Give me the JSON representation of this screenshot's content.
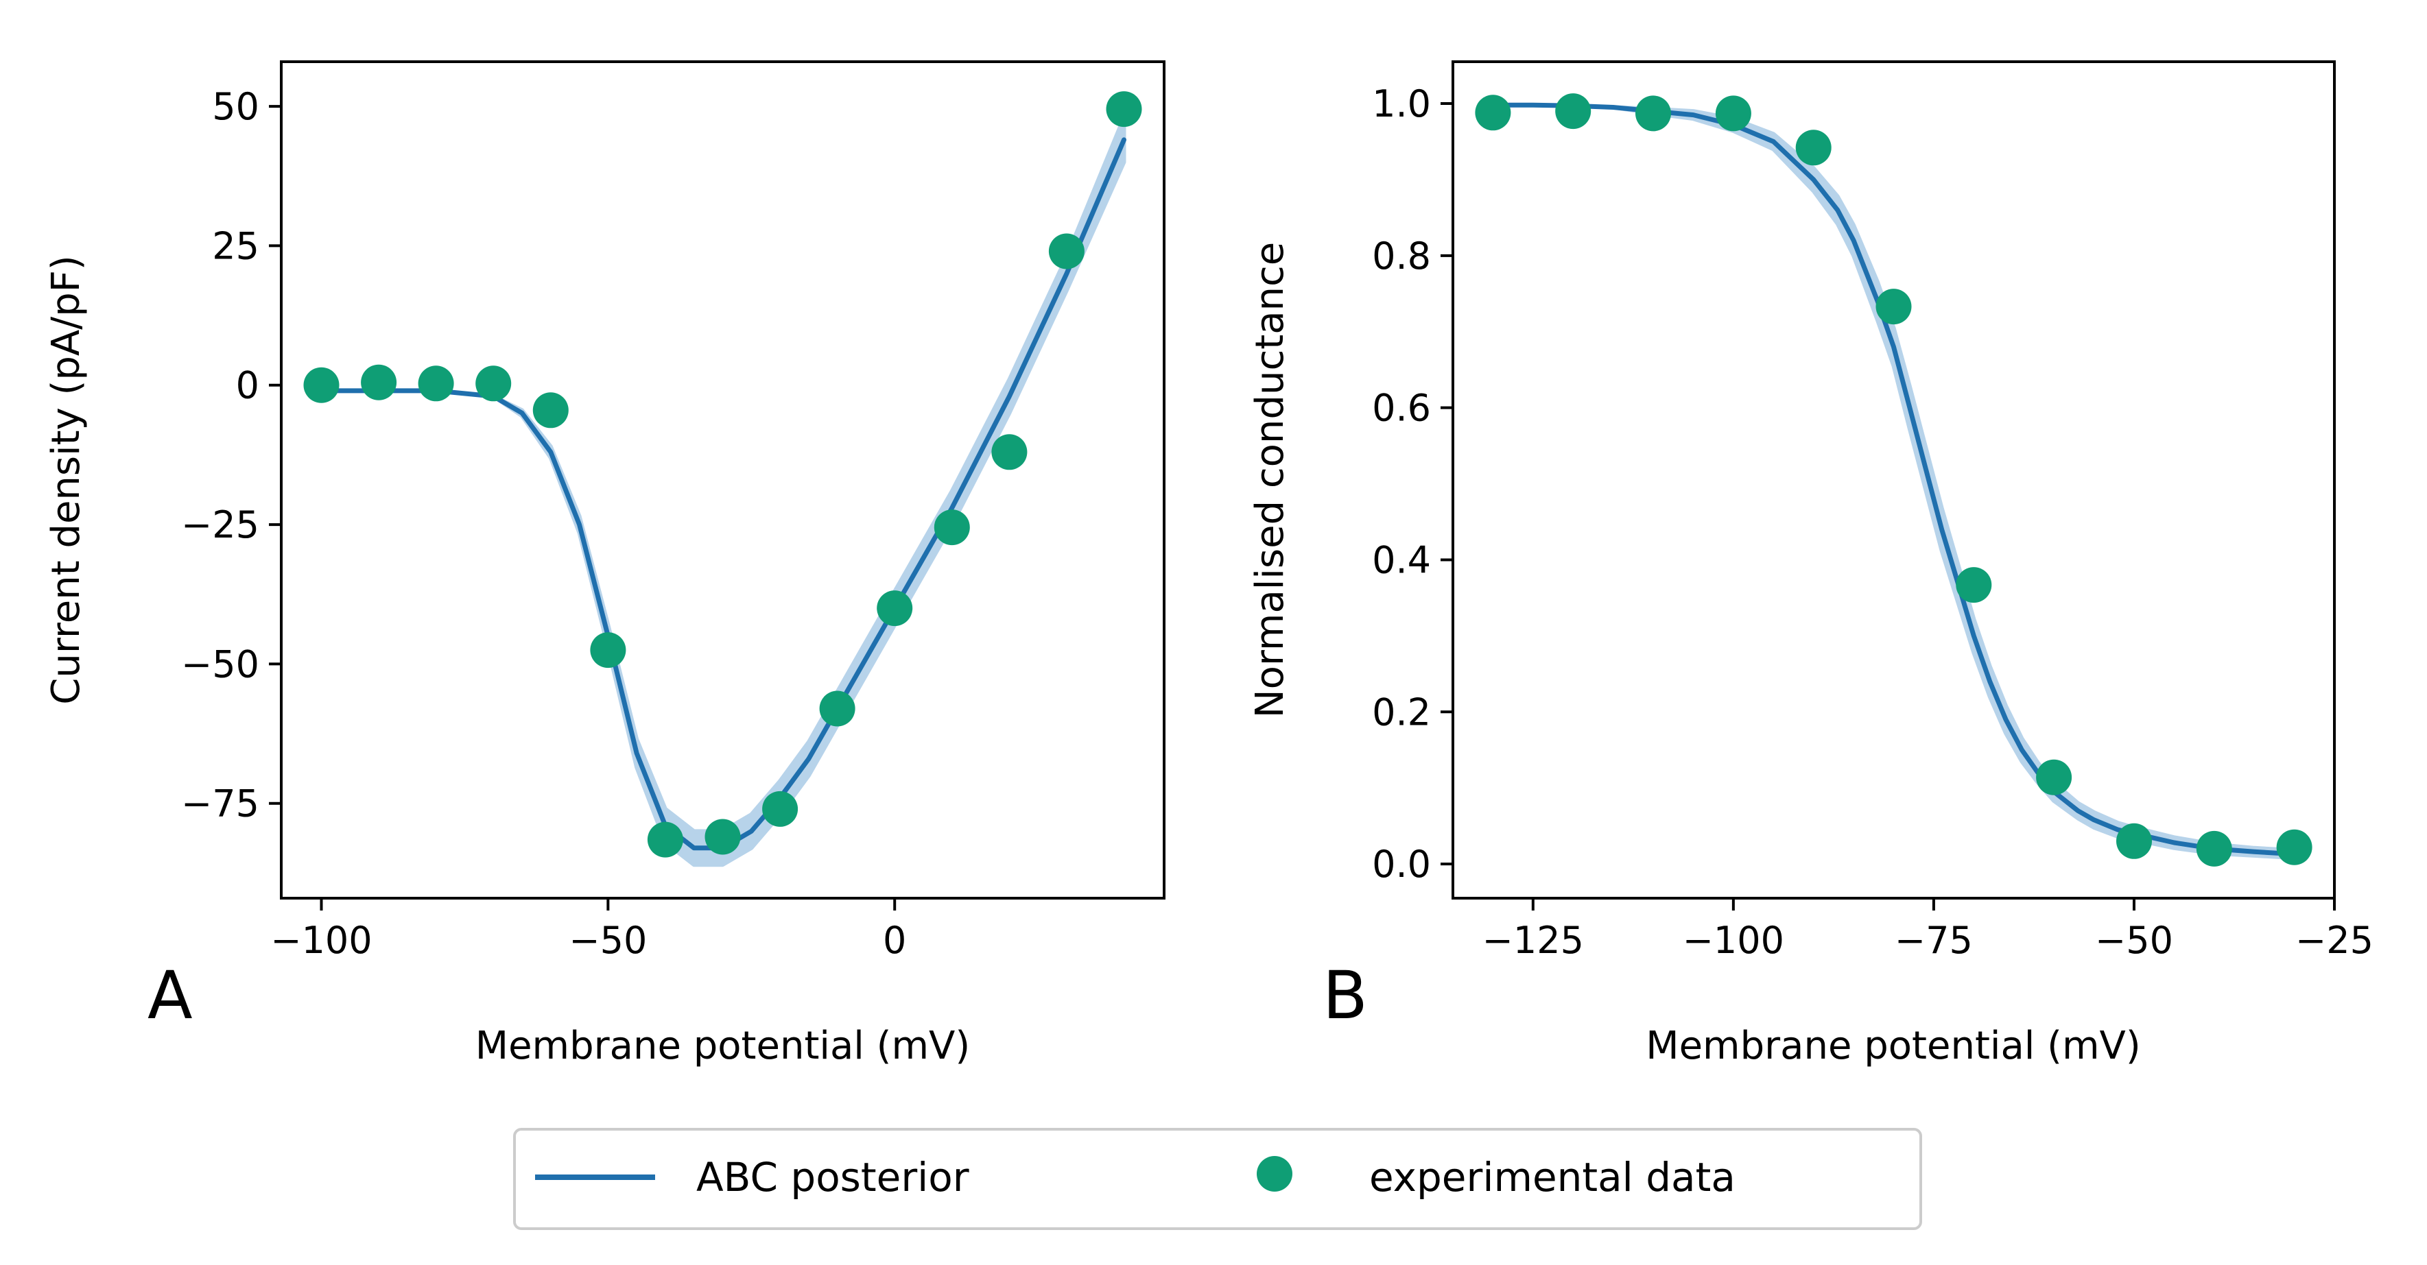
{
  "colors": {
    "fit_line": "#1f6fad",
    "fit_band": "#b7d3ea",
    "data_points": "#0f9e75",
    "axes": "#000000",
    "legend_border": "#cccccc"
  },
  "legend": {
    "fit_label": "ABC posterior",
    "data_label": "experimental data",
    "placement": "bottom-center"
  },
  "chart_data": [
    {
      "panel_label": "A",
      "type": "line+scatter",
      "title": "",
      "xlabel": "Membrane potential (mV)",
      "ylabel": "Current density (pA/pF)",
      "xlim": [
        -107,
        47
      ],
      "ylim": [
        -92,
        58
      ],
      "xticks": [
        -100,
        -50,
        0
      ],
      "xtick_labels": [
        "−100",
        "−50",
        "0"
      ],
      "yticks": [
        50,
        25,
        0,
        -25,
        -50,
        -75
      ],
      "ytick_labels": [
        "50",
        "25",
        "0",
        "−25",
        "−50",
        "−75"
      ],
      "grid": false,
      "fit": {
        "name": "ABC posterior",
        "x": [
          -100,
          -90,
          -80,
          -70,
          -65,
          -60,
          -55,
          -50,
          -45,
          -40,
          -35,
          -30,
          -25,
          -20,
          -15,
          -10,
          -5,
          0,
          5,
          10,
          15,
          20,
          25,
          30,
          35,
          40
        ],
        "y": [
          -1,
          -1,
          -1,
          -2,
          -5,
          -12,
          -25,
          -45,
          -66,
          -79,
          -83,
          -83,
          -80,
          -74,
          -67,
          -58,
          -49,
          -40,
          -31,
          -22,
          -12,
          -2,
          9,
          20,
          32,
          44
        ],
        "band_halfwidth": [
          0,
          0,
          0,
          0,
          0.5,
          1,
          1.5,
          2,
          2.5,
          3,
          3,
          3,
          3,
          3,
          3,
          3,
          3,
          3,
          3,
          3,
          3,
          3,
          3,
          3,
          3.5,
          4
        ]
      },
      "points": {
        "name": "experimental data",
        "x": [
          -100,
          -90,
          -80,
          -70,
          -60,
          -50,
          -40,
          -30,
          -20,
          -10,
          0,
          10,
          20,
          30,
          40
        ],
        "y": [
          0,
          0.5,
          0.3,
          0.3,
          -4.5,
          -47.5,
          -81.5,
          -81,
          -76,
          -58,
          -40,
          -25.5,
          -12,
          24,
          49.5
        ]
      }
    },
    {
      "panel_label": "B",
      "type": "line+scatter",
      "title": "",
      "xlabel": "Membrane potential (mV)",
      "ylabel": "Normalised conductance",
      "xlim": [
        -135,
        -25
      ],
      "ylim": [
        -0.045,
        1.055
      ],
      "xticks": [
        -125,
        -100,
        -75,
        -50,
        -25
      ],
      "xtick_labels": [
        "−125",
        "−100",
        "−75",
        "−50",
        "−25"
      ],
      "yticks": [
        0.0,
        0.2,
        0.4,
        0.6,
        0.8,
        1.0
      ],
      "ytick_labels": [
        "0.0",
        "0.2",
        "0.4",
        "0.6",
        "0.8",
        "1.0"
      ],
      "grid": false,
      "fit": {
        "name": "ABC posterior",
        "x": [
          -130,
          -125,
          -120,
          -115,
          -110,
          -105,
          -100,
          -95,
          -90,
          -87,
          -85,
          -82,
          -80,
          -78,
          -76,
          -74,
          -72,
          -70,
          -68,
          -66,
          -64,
          -62,
          -60,
          -57,
          -55,
          -52,
          -50,
          -45,
          -40,
          -35,
          -30
        ],
        "y": [
          0.998,
          0.998,
          0.997,
          0.995,
          0.99,
          0.985,
          0.972,
          0.95,
          0.9,
          0.86,
          0.82,
          0.74,
          0.68,
          0.6,
          0.52,
          0.44,
          0.37,
          0.3,
          0.24,
          0.19,
          0.15,
          0.12,
          0.095,
          0.07,
          0.058,
          0.045,
          0.04,
          0.028,
          0.02,
          0.016,
          0.013
        ],
        "band_halfwidth": [
          0,
          0,
          0,
          0,
          0.003,
          0.005,
          0.008,
          0.01,
          0.015,
          0.018,
          0.02,
          0.025,
          0.025,
          0.028,
          0.028,
          0.028,
          0.025,
          0.022,
          0.02,
          0.018,
          0.015,
          0.013,
          0.012,
          0.01,
          0.01,
          0.009,
          0.008,
          0.007,
          0.006,
          0.005,
          0.005
        ]
      },
      "points": {
        "name": "experimental data",
        "x": [
          -130,
          -120,
          -110,
          -100,
          -90,
          -80,
          -70,
          -60,
          -50,
          -40,
          -30
        ],
        "y": [
          0.988,
          0.99,
          0.987,
          0.987,
          0.942,
          0.733,
          0.367,
          0.114,
          0.03,
          0.02,
          0.022
        ]
      }
    }
  ]
}
